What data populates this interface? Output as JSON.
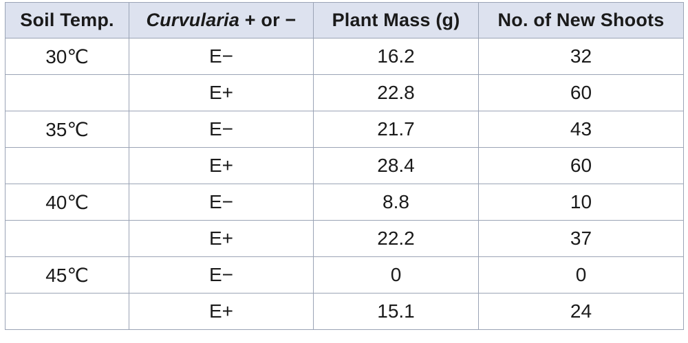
{
  "table": {
    "headers": {
      "soil_temp": "Soil Temp.",
      "curvularia_italic": "Curvularia",
      "curvularia_rest": " + or −",
      "plant_mass": "Plant Mass (g)",
      "new_shoots": "No. of New Shoots"
    },
    "rows": [
      {
        "temp": "30℃",
        "curvularia": "E−",
        "mass": "16.2",
        "shoots": "32"
      },
      {
        "temp": "",
        "curvularia": "E+",
        "mass": "22.8",
        "shoots": "60"
      },
      {
        "temp": "35℃",
        "curvularia": "E−",
        "mass": "21.7",
        "shoots": "43"
      },
      {
        "temp": "",
        "curvularia": "E+",
        "mass": "28.4",
        "shoots": "60"
      },
      {
        "temp": "40℃",
        "curvularia": "E−",
        "mass": "8.8",
        "shoots": "10"
      },
      {
        "temp": "",
        "curvularia": "E+",
        "mass": "22.2",
        "shoots": "37"
      },
      {
        "temp": "45℃",
        "curvularia": "E−",
        "mass": "0",
        "shoots": "0"
      },
      {
        "temp": "",
        "curvularia": "E+",
        "mass": "15.1",
        "shoots": "24"
      }
    ]
  },
  "colors": {
    "header_bg": "#dde2ef",
    "border": "#9aa3b5",
    "text": "#1a1a1a"
  }
}
